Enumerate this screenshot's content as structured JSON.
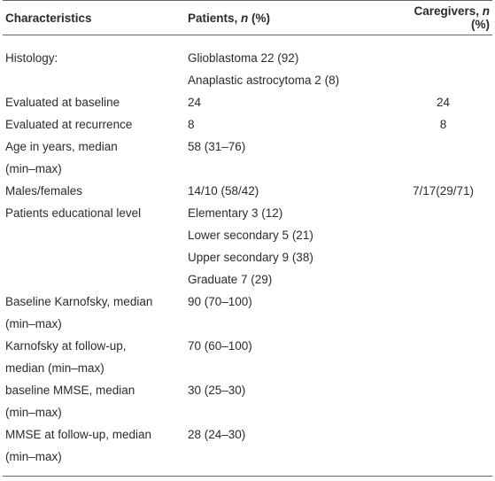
{
  "table": {
    "header": [
      [
        "Characteristics"
      ],
      [
        "Patients, ",
        "n",
        " (%)"
      ],
      [
        "Caregivers, ",
        "n",
        " (%)"
      ]
    ],
    "rows": [
      {
        "label": [
          "Histology:"
        ],
        "patients": [
          "Glioblastoma 22 (92)",
          "Anaplastic astrocytoma 2 (8)"
        ]
      },
      {
        "label": [
          "Evaluated at baseline"
        ],
        "patients": [
          "24"
        ],
        "caregivers": [
          "24"
        ]
      },
      {
        "label": [
          "Evaluated at recurrence"
        ],
        "patients": [
          "8"
        ],
        "caregivers": [
          "8"
        ]
      },
      {
        "label": [
          "Age in years, median",
          "(min–max)"
        ],
        "patients": [
          "58 (31–76)"
        ]
      },
      {
        "label": [
          "Males/females"
        ],
        "patients": [
          "14/10 (58/42)"
        ],
        "caregivers": [
          "7/17(29/71)"
        ]
      },
      {
        "label": [
          "Patients educational level"
        ],
        "patients": [
          "Elementary 3 (12)",
          "Lower secondary 5 (21)",
          "Upper secondary 9 (38)",
          "Graduate 7 (29)"
        ]
      },
      {
        "label": [
          "Baseline Karnofsky, median",
          "(min–max)"
        ],
        "patients": [
          "90 (70–100)"
        ]
      },
      {
        "label": [
          "Karnofsky at follow-up,",
          "median (min–max)"
        ],
        "patients": [
          "70 (60–100)"
        ]
      },
      {
        "label": [
          "baseline MMSE, median",
          "(min–max)"
        ],
        "patients": [
          "30 (25–30)"
        ]
      },
      {
        "label": [
          "MMSE at follow-up, median",
          "(min–max)"
        ],
        "patients": [
          "28 (24–30)"
        ]
      }
    ]
  }
}
